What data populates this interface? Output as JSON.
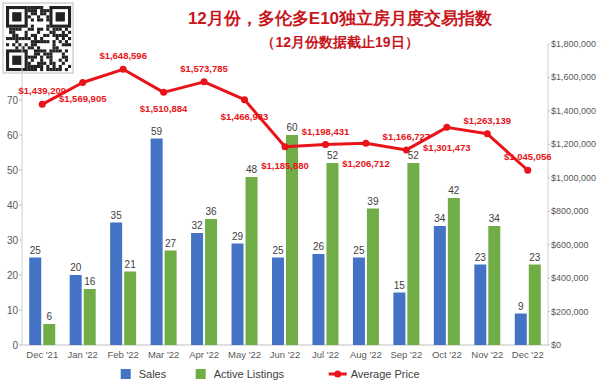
{
  "chart_data": {
    "type": "bar",
    "title": "12月份，多伦多E10独立房月度交易指数",
    "subtitle": "（12月份数据截止19日）",
    "categories": [
      "Dec '21",
      "Jan '22",
      "Feb '22",
      "Mar '22",
      "Apr '22",
      "May '22",
      "Jun '22",
      "Jul '22",
      "Aug '22",
      "Sep '22",
      "Oct '22",
      "Nov '22",
      "Dec '22"
    ],
    "series": [
      {
        "name": "Sales",
        "type": "bar",
        "color": "#4472c4",
        "values": [
          25,
          20,
          35,
          59,
          32,
          29,
          25,
          26,
          25,
          15,
          34,
          23,
          9
        ]
      },
      {
        "name": "Active Listings",
        "type": "bar",
        "color": "#70ad47",
        "values": [
          6,
          16,
          21,
          27,
          36,
          48,
          60,
          52,
          39,
          52,
          42,
          34,
          23
        ]
      },
      {
        "name": "Average Price",
        "type": "line",
        "color": "#e8141a",
        "axis": "y2",
        "marker": "circle",
        "values": [
          1439209,
          1569905,
          1648596,
          1510884,
          1573785,
          1466933,
          1185880,
          1198431,
          1206712,
          1166727,
          1301473,
          1263139,
          1045056
        ],
        "value_labels": [
          "$1,439,209",
          "$1,569,905",
          "$1,648,596",
          "$1,510,884",
          "$1,573,785",
          "$1,466,933",
          "$1,185,880",
          "$1,198,431",
          "$1,206,712",
          "$1,166,727",
          "$1,301,473",
          "$1,263,139",
          "$1,045,056"
        ]
      }
    ],
    "ylim": [
      0,
      86
    ],
    "yticks": [
      0,
      10,
      20,
      30,
      40,
      50,
      60,
      70
    ],
    "y2lim": [
      0,
      1800000
    ],
    "y2ticks": [
      {
        "value": 0,
        "label": "$0"
      },
      {
        "value": 200000,
        "label": "$200,000"
      },
      {
        "value": 400000,
        "label": "$400,000"
      },
      {
        "value": 600000,
        "label": "$600,000"
      },
      {
        "value": 800000,
        "label": "$800,000"
      },
      {
        "value": 1000000,
        "label": "$1,000,000"
      },
      {
        "value": 1200000,
        "label": "$1,200,000"
      },
      {
        "value": 1400000,
        "label": "$1,400,000"
      },
      {
        "value": 1600000,
        "label": "$1,600,000"
      },
      {
        "value": 1800000,
        "label": "$1,800,000"
      }
    ],
    "grid": false,
    "legend": "bottom",
    "data_labels": true
  }
}
